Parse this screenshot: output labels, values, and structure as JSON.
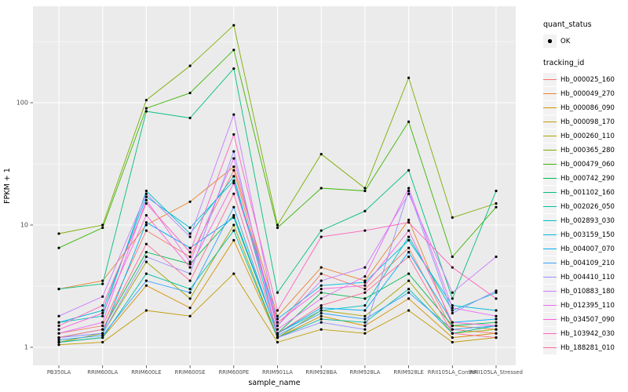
{
  "figure": {
    "background": "#FFFFFF",
    "panel_bg": "#EBEBEB",
    "grid_color": "#FFFFFF",
    "axis_text_color": "#4D4D4D",
    "point_color": "#000000"
  },
  "axes": {
    "x_title": "sample_name",
    "y_title": "FPKM + 1",
    "y_ticks": [
      "1",
      "10",
      "100"
    ]
  },
  "legend": {
    "quant_status": {
      "title": "quant_status",
      "entries": [
        {
          "label": "OK",
          "symbol": "point"
        }
      ]
    },
    "tracking_id": {
      "title": "tracking_id"
    }
  },
  "chart_data": {
    "type": "line",
    "title": "",
    "xlabel": "sample_name",
    "ylabel": "FPKM + 1",
    "y_scale": "log10",
    "ylim": [
      1,
      560
    ],
    "grid": true,
    "legend_position": "right",
    "categories": [
      "PB350LA",
      "RRIM600LA",
      "RRIM600LE",
      "RRIM600SE",
      "RRIM600PE",
      "RRIM901LA",
      "RRIM928BA",
      "RRIM928LA",
      "RRIM928LE",
      "RRII105LA_Control",
      "RRII105LA_Stressed"
    ],
    "minor_gridlines": [
      3.1623,
      31.623,
      316.23
    ],
    "series": [
      {
        "name": "Hb_000025_160",
        "color": "#F8766D",
        "values": [
          1.3,
          1.5,
          9,
          5.5,
          28,
          1.5,
          4,
          3,
          6.5,
          1.4,
          1.3
        ]
      },
      {
        "name": "Hb_000049_270",
        "color": "#EA8331",
        "values": [
          3,
          3.5,
          10,
          15.5,
          30,
          1.8,
          4.5,
          3.5,
          11,
          1.5,
          1.4
        ]
      },
      {
        "name": "Hb_000086_090",
        "color": "#D89000",
        "values": [
          1.1,
          1.2,
          3.2,
          2.1,
          7.5,
          1.2,
          1.8,
          1.5,
          2.5,
          1.2,
          1.3
        ]
      },
      {
        "name": "Hb_000098_170",
        "color": "#C09B00",
        "values": [
          1.05,
          1.1,
          2,
          1.8,
          4,
          1.1,
          1.4,
          1.3,
          2,
          1.1,
          1.2
        ]
      },
      {
        "name": "Hb_000260_110",
        "color": "#A3A500",
        "values": [
          1.1,
          1.3,
          5,
          2.5,
          10,
          1.2,
          2,
          1.8,
          3.5,
          1.3,
          1.4
        ]
      },
      {
        "name": "Hb_000365_280",
        "color": "#7CAE00",
        "values": [
          8.5,
          10,
          105,
          200,
          430,
          10,
          38,
          20,
          160,
          11.5,
          15
        ]
      },
      {
        "name": "Hb_000479_060",
        "color": "#39B600",
        "values": [
          6.5,
          9.5,
          90,
          120,
          270,
          9.5,
          20,
          19,
          70,
          5.5,
          14
        ]
      },
      {
        "name": "Hb_000742_290",
        "color": "#00BB4E",
        "values": [
          1.2,
          1.4,
          6,
          4.8,
          12,
          1.3,
          2.8,
          2.5,
          4,
          1.5,
          1.6
        ]
      },
      {
        "name": "Hb_001102_160",
        "color": "#00BF7D",
        "values": [
          3,
          3.3,
          85,
          75,
          190,
          2.8,
          9,
          13,
          28,
          2.5,
          19
        ]
      },
      {
        "name": "Hb_002026_050",
        "color": "#00C1A3",
        "values": [
          1.1,
          1.2,
          4,
          3,
          9,
          1.2,
          1.7,
          1.6,
          3,
          1.3,
          1.5
        ]
      },
      {
        "name": "Hb_002893_030",
        "color": "#00BFC4",
        "values": [
          1.6,
          1.8,
          19,
          8.5,
          25,
          1.3,
          2,
          2.2,
          8,
          2,
          2.8
        ]
      },
      {
        "name": "Hb_003159_150",
        "color": "#00BAE0",
        "values": [
          1.6,
          2,
          17,
          9.5,
          23,
          1.7,
          3.2,
          3.4,
          7.5,
          2.2,
          2
        ]
      },
      {
        "name": "Hb_004007_070",
        "color": "#00B0F6",
        "values": [
          1.2,
          1.3,
          10.5,
          6.5,
          11.5,
          1.3,
          2.1,
          2,
          6,
          1.6,
          1.7
        ]
      },
      {
        "name": "Hb_004109_210",
        "color": "#35A2FF",
        "values": [
          1.15,
          1.25,
          3.5,
          2.8,
          14,
          1.25,
          1.9,
          1.7,
          2.8,
          1.4,
          1.5
        ]
      },
      {
        "name": "Hb_004410_110",
        "color": "#9590FF",
        "values": [
          1.2,
          1.3,
          5.5,
          4,
          40,
          1.2,
          1.6,
          1.4,
          19,
          1.9,
          2.9
        ]
      },
      {
        "name": "Hb_010883_180",
        "color": "#C77CFF",
        "values": [
          1.8,
          2.6,
          18,
          8,
          80,
          1.5,
          3.5,
          4.5,
          18,
          2.8,
          5.5
        ]
      },
      {
        "name": "Hb_012395_110",
        "color": "#E76BF3",
        "values": [
          1.3,
          1.6,
          16,
          5,
          35,
          1.4,
          2.5,
          3.8,
          20,
          2.1,
          1.8
        ]
      },
      {
        "name": "Hb_034507_090",
        "color": "#FA62DB",
        "values": [
          1.4,
          1.9,
          12,
          4.5,
          22,
          1.6,
          3,
          3.2,
          9,
          1.6,
          1.5
        ]
      },
      {
        "name": "Hb_103942_030",
        "color": "#FF62BC",
        "values": [
          1.5,
          2.2,
          15,
          6,
          55,
          2,
          8,
          9,
          10.5,
          4.5,
          2.5
        ]
      },
      {
        "name": "Hb_188281_010",
        "color": "#FF6A98",
        "values": [
          1.2,
          1.4,
          7,
          3.5,
          18,
          1.3,
          2.2,
          2.8,
          5.5,
          1.3,
          1.2
        ]
      }
    ]
  }
}
